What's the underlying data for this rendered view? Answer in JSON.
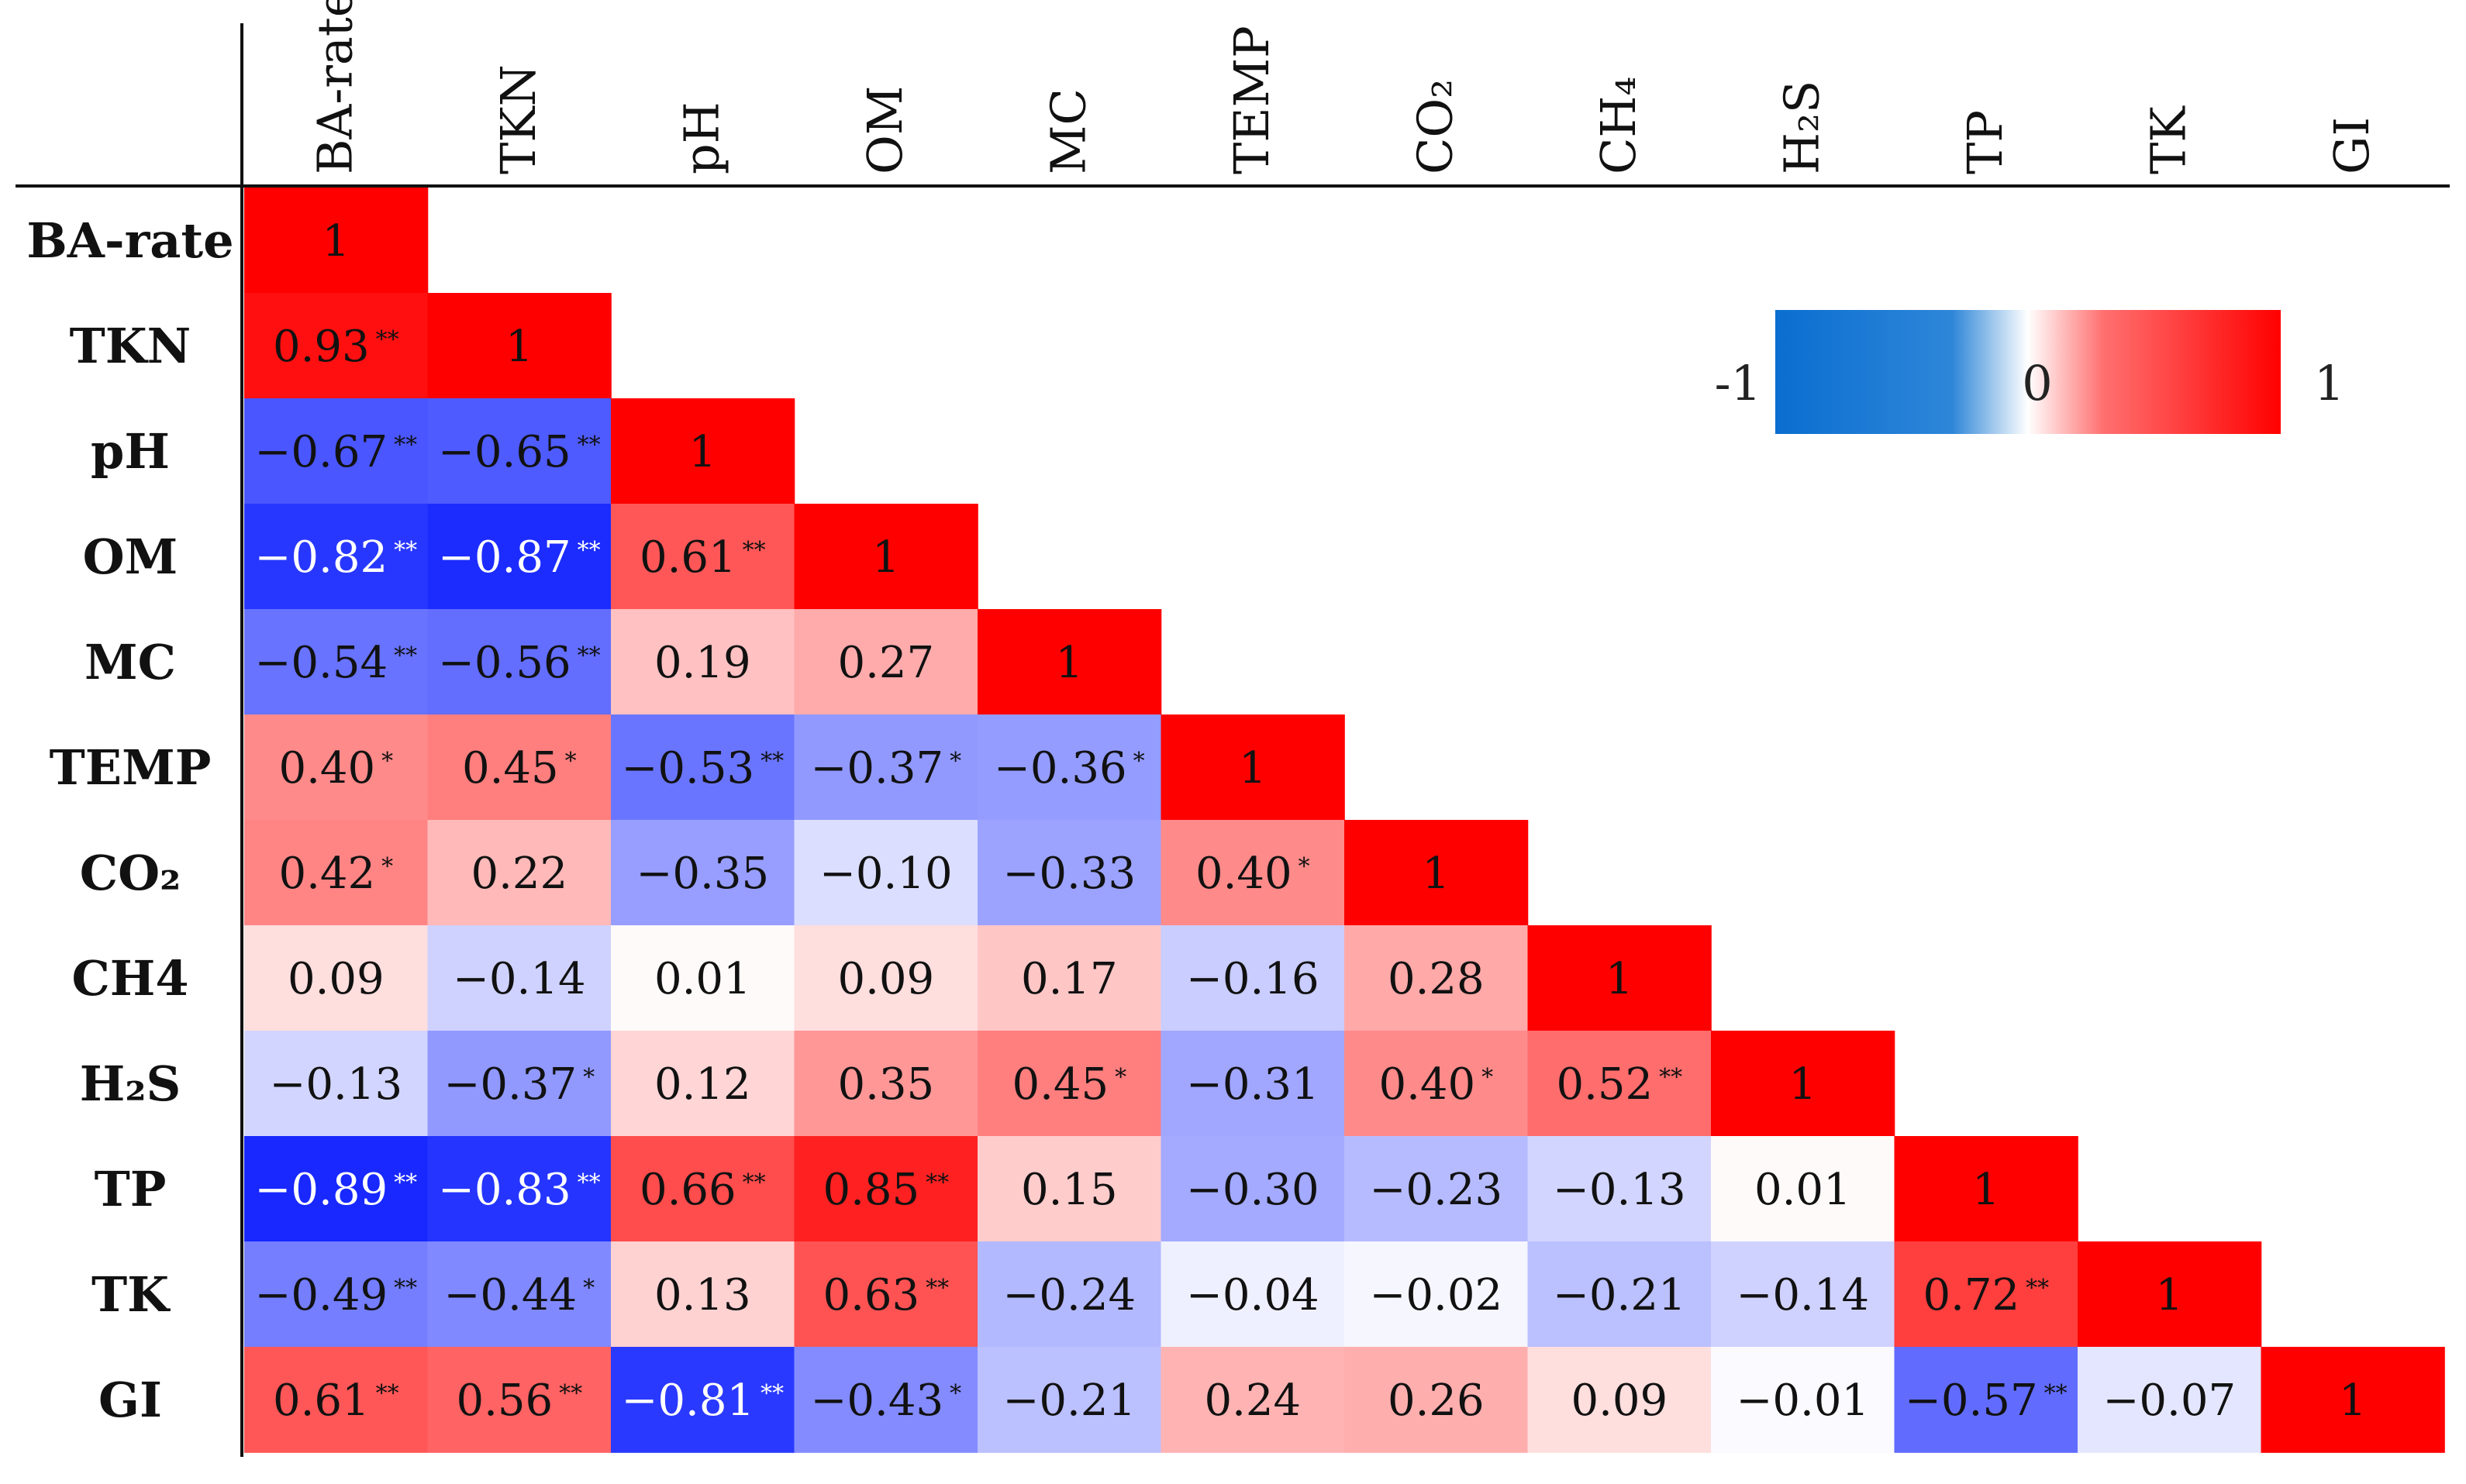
{
  "chart_data": {
    "type": "heatmap",
    "subtype": "lower-triangular correlation matrix",
    "variables": [
      "BA-rate",
      "TKN",
      "pH",
      "OM",
      "MC",
      "TEMP",
      "CO₂",
      "CH4",
      "H₂S",
      "TP",
      "TK",
      "GI"
    ],
    "column_labels": [
      "BA-rate",
      "TKN",
      "pH",
      "OM",
      "MC",
      "TEMP",
      "CO₂",
      "CH₄",
      "H₂S",
      "TP",
      "TK",
      "GI"
    ],
    "row_labels": [
      "BA-rate",
      "TKN",
      "pH",
      "OM",
      "MC",
      "TEMP",
      "CO₂",
      "CH4",
      "H₂S",
      "TP",
      "TK",
      "GI"
    ],
    "matrix": [
      [
        1
      ],
      [
        0.93,
        1
      ],
      [
        -0.67,
        -0.65,
        1
      ],
      [
        -0.82,
        -0.87,
        0.61,
        1
      ],
      [
        -0.54,
        -0.56,
        0.19,
        0.27,
        1
      ],
      [
        0.4,
        0.45,
        -0.53,
        -0.37,
        -0.36,
        1
      ],
      [
        0.42,
        0.22,
        -0.35,
        -0.1,
        -0.33,
        0.4,
        1
      ],
      [
        0.09,
        -0.14,
        0.01,
        0.09,
        0.17,
        -0.16,
        0.28,
        1
      ],
      [
        -0.13,
        -0.37,
        0.12,
        0.35,
        0.45,
        -0.31,
        0.4,
        0.52,
        1
      ],
      [
        -0.89,
        -0.83,
        0.66,
        0.85,
        0.15,
        -0.3,
        -0.23,
        -0.13,
        0.01,
        1
      ],
      [
        -0.49,
        -0.44,
        0.13,
        0.63,
        -0.24,
        -0.04,
        -0.02,
        -0.21,
        -0.14,
        0.72,
        1
      ],
      [
        0.61,
        0.56,
        -0.81,
        -0.43,
        -0.21,
        0.24,
        0.26,
        0.09,
        -0.01,
        -0.57,
        -0.07,
        1
      ]
    ],
    "significance": [
      [
        ""
      ],
      [
        "**",
        ""
      ],
      [
        "**",
        "**",
        ""
      ],
      [
        "**",
        "**",
        "**",
        ""
      ],
      [
        "**",
        "**",
        "",
        "",
        ""
      ],
      [
        "*",
        "*",
        "**",
        "*",
        "*",
        ""
      ],
      [
        "*",
        "",
        "",
        "",
        "",
        "*",
        ""
      ],
      [
        "",
        "",
        "",
        "",
        "",
        "",
        "",
        ""
      ],
      [
        "",
        "*",
        "",
        "",
        "*",
        "",
        "*",
        "**",
        ""
      ],
      [
        "**",
        "**",
        "**",
        "**",
        "",
        "",
        "",
        "",
        "",
        ""
      ],
      [
        "**",
        "*",
        "",
        "**",
        "",
        "",
        "",
        "",
        "",
        "**",
        ""
      ],
      [
        "**",
        "**",
        "**",
        "*",
        "",
        "",
        "",
        "",
        "",
        "**",
        "",
        ""
      ]
    ],
    "colorbar": {
      "min_label": "-1",
      "mid_label": "0",
      "max_label": "1",
      "range": [
        -1,
        1
      ],
      "color_negative": "#0044FF",
      "color_zero": "#FFFFFF",
      "color_positive": "#FF0000"
    },
    "value_format": "fixed-2",
    "diagonal_label": "1"
  }
}
